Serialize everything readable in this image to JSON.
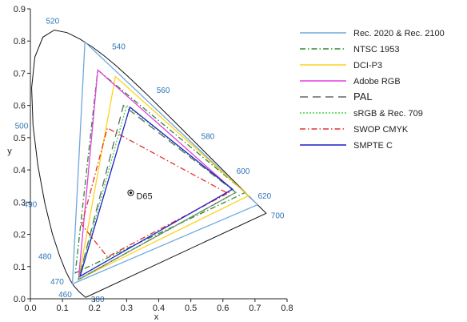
{
  "chart_data": {
    "type": "line",
    "xlabel": "x",
    "ylabel": "y",
    "xlim": [
      0,
      0.8
    ],
    "ylim": [
      0,
      0.9
    ],
    "x_ticks": [
      "0.0",
      "0.1",
      "0.2",
      "0.3",
      "0.4",
      "0.5",
      "0.6",
      "0.7",
      "0.8"
    ],
    "y_ticks": [
      "0.0",
      "0.1",
      "0.2",
      "0.3",
      "0.4",
      "0.5",
      "0.6",
      "0.7",
      "0.8",
      "0.9"
    ],
    "grid": false,
    "legend_position": "right",
    "locus": [
      [
        0.1741,
        0.005
      ],
      [
        0.1738,
        0.0049
      ],
      [
        0.1724,
        0.0048
      ],
      [
        0.1703,
        0.0058
      ],
      [
        0.1666,
        0.0089
      ],
      [
        0.1611,
        0.0138
      ],
      [
        0.151,
        0.0227
      ],
      [
        0.1355,
        0.0399
      ],
      [
        0.1241,
        0.0578
      ],
      [
        0.1096,
        0.0868
      ],
      [
        0.0913,
        0.1327
      ],
      [
        0.0687,
        0.2007
      ],
      [
        0.0454,
        0.295
      ],
      [
        0.0235,
        0.4127
      ],
      [
        0.0082,
        0.5384
      ],
      [
        0.0039,
        0.6548
      ],
      [
        0.0139,
        0.7502
      ],
      [
        0.0389,
        0.812
      ],
      [
        0.0743,
        0.8338
      ],
      [
        0.1142,
        0.8262
      ],
      [
        0.1547,
        0.8059
      ],
      [
        0.1929,
        0.7816
      ],
      [
        0.2296,
        0.7543
      ],
      [
        0.2658,
        0.7243
      ],
      [
        0.3016,
        0.6923
      ],
      [
        0.3373,
        0.6589
      ],
      [
        0.3731,
        0.6245
      ],
      [
        0.4087,
        0.5896
      ],
      [
        0.4441,
        0.5547
      ],
      [
        0.4788,
        0.5202
      ],
      [
        0.5125,
        0.4866
      ],
      [
        0.5448,
        0.4544
      ],
      [
        0.5752,
        0.4242
      ],
      [
        0.6029,
        0.3965
      ],
      [
        0.627,
        0.3725
      ],
      [
        0.6482,
        0.3514
      ],
      [
        0.6658,
        0.334
      ],
      [
        0.6801,
        0.3197
      ],
      [
        0.6915,
        0.3083
      ],
      [
        0.7006,
        0.2993
      ],
      [
        0.7079,
        0.292
      ],
      [
        0.714,
        0.2859
      ],
      [
        0.719,
        0.2809
      ],
      [
        0.723,
        0.277
      ],
      [
        0.726,
        0.274
      ],
      [
        0.7283,
        0.2717
      ],
      [
        0.73,
        0.27
      ],
      [
        0.7347,
        0.2653
      ]
    ],
    "wavelength_labels": [
      {
        "label": "380",
        "x": 0.1741,
        "y": 0.005
      },
      {
        "label": "460",
        "x": 0.144,
        "y": 0.0297
      },
      {
        "label": "470",
        "x": 0.1241,
        "y": 0.0578
      },
      {
        "label": "480",
        "x": 0.0913,
        "y": 0.1327
      },
      {
        "label": "490",
        "x": 0.0454,
        "y": 0.295
      },
      {
        "label": "500",
        "x": 0.0082,
        "y": 0.5384
      },
      {
        "label": "520",
        "x": 0.0743,
        "y": 0.8338
      },
      {
        "label": "540",
        "x": 0.2296,
        "y": 0.7543
      },
      {
        "label": "560",
        "x": 0.3731,
        "y": 0.6245
      },
      {
        "label": "580",
        "x": 0.5125,
        "y": 0.4866
      },
      {
        "label": "600",
        "x": 0.627,
        "y": 0.3725
      },
      {
        "label": "620",
        "x": 0.6915,
        "y": 0.3083
      },
      {
        "label": "700",
        "x": 0.7347,
        "y": 0.2653
      }
    ],
    "white_point": {
      "label": "D65",
      "x": 0.3127,
      "y": 0.329
    },
    "series": [
      {
        "name": "Rec. 2020 & Rec. 2100",
        "color": "#6fa8dc",
        "dash": "solid",
        "points": [
          [
            0.708,
            0.292
          ],
          [
            0.17,
            0.797
          ],
          [
            0.131,
            0.046
          ]
        ]
      },
      {
        "name": "NTSC 1953",
        "color": "#2e8b2e",
        "dash": "dashdot",
        "points": [
          [
            0.67,
            0.33
          ],
          [
            0.21,
            0.71
          ],
          [
            0.14,
            0.08
          ]
        ]
      },
      {
        "name": "DCI-P3",
        "color": "#ffd21f",
        "dash": "solid",
        "points": [
          [
            0.68,
            0.32
          ],
          [
            0.265,
            0.69
          ],
          [
            0.15,
            0.06
          ]
        ]
      },
      {
        "name": "Adobe RGB",
        "color": "#e040e0",
        "dash": "solid",
        "points": [
          [
            0.64,
            0.33
          ],
          [
            0.21,
            0.71
          ],
          [
            0.15,
            0.06
          ]
        ]
      },
      {
        "name": "PAL",
        "color": "#666666",
        "dash": "longdash",
        "points": [
          [
            0.64,
            0.33
          ],
          [
            0.29,
            0.6
          ],
          [
            0.15,
            0.06
          ]
        ]
      },
      {
        "name": "sRGB & Rec. 709",
        "color": "#3cd63c",
        "dash": "dotted",
        "points": [
          [
            0.64,
            0.33
          ],
          [
            0.3,
            0.6
          ],
          [
            0.15,
            0.06
          ]
        ]
      },
      {
        "name": "SWOP CMYK",
        "color": "#e03030",
        "dash": "dashdot",
        "points": [
          [
            0.61,
            0.33
          ],
          [
            0.24,
            0.53
          ],
          [
            0.16,
            0.23
          ],
          [
            0.24,
            0.13
          ],
          [
            0.62,
            0.33
          ]
        ]
      },
      {
        "name": "SMPTE C",
        "color": "#1f1fc8",
        "dash": "solid",
        "points": [
          [
            0.63,
            0.34
          ],
          [
            0.31,
            0.595
          ],
          [
            0.155,
            0.07
          ]
        ]
      }
    ]
  }
}
